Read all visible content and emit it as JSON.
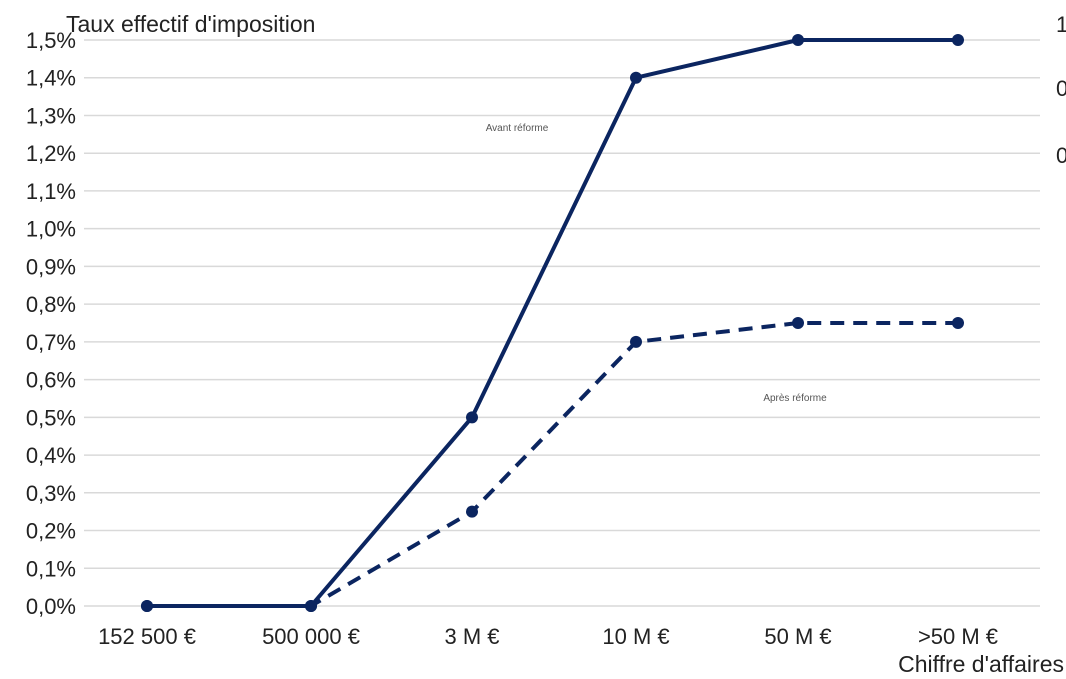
{
  "colors": {
    "series": "#0b2560",
    "grid": "#d9d9d9",
    "text": "#222222",
    "label": "#555555",
    "background": "#ffffff"
  },
  "chart_data": {
    "type": "line",
    "title": "",
    "ylabel": "Taux effectif d'imposition",
    "xlabel": "Chiffre d'affaires",
    "categories": [
      "152 500 €",
      "500 000 €",
      "3 M €",
      "10 M €",
      "50 M €",
      ">50 M €"
    ],
    "ylim": [
      0,
      1.5
    ],
    "yticks": [
      {
        "value": 0.0,
        "label": "0,0%"
      },
      {
        "value": 0.1,
        "label": "0,1%"
      },
      {
        "value": 0.2,
        "label": "0,2%"
      },
      {
        "value": 0.3,
        "label": "0,3%"
      },
      {
        "value": 0.4,
        "label": "0,4%"
      },
      {
        "value": 0.5,
        "label": "0,5%"
      },
      {
        "value": 0.6,
        "label": "0,6%"
      },
      {
        "value": 0.7,
        "label": "0,7%"
      },
      {
        "value": 0.8,
        "label": "0,8%"
      },
      {
        "value": 0.9,
        "label": "0,9%"
      },
      {
        "value": 1.0,
        "label": "1,0%"
      },
      {
        "value": 1.1,
        "label": "1,1%"
      },
      {
        "value": 1.2,
        "label": "1,2%"
      },
      {
        "value": 1.3,
        "label": "1,3%"
      },
      {
        "value": 1.4,
        "label": "1,4%"
      },
      {
        "value": 1.5,
        "label": "1,5%"
      }
    ],
    "right_axis_labels": [
      "1",
      "0",
      "0"
    ],
    "grid": true,
    "legend": "none",
    "series": [
      {
        "name": "Avant réforme",
        "style": "solid",
        "values": [
          0.0,
          0.0,
          0.5,
          1.4,
          1.5,
          1.5
        ]
      },
      {
        "name": "Après réforme",
        "style": "dashed",
        "values": [
          0.0,
          0.0,
          0.25,
          0.7,
          0.75,
          0.75
        ]
      }
    ]
  }
}
